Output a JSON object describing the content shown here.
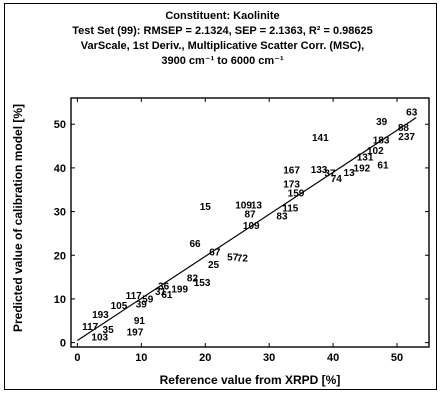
{
  "chart_data": {
    "type": "scatter",
    "title_lines": [
      "Constituent: Kaolinite",
      "Test Set (99): RMSEP = 2.1324, SEP = 2.1363, R² = 0.98625",
      "VarScale, 1st Deriv., Multiplicative Scatter Corr. (MSC),",
      "3900 cm⁻¹ to 6000 cm⁻¹"
    ],
    "xlabel": "Reference value from XRPD [%]",
    "ylabel": "Predicted value of calibration model [%]",
    "xlim": [
      -1,
      55
    ],
    "ylim": [
      -1,
      56
    ],
    "xticks": [
      0,
      10,
      20,
      30,
      40,
      50
    ],
    "yticks": [
      0,
      10,
      20,
      30,
      40,
      50
    ],
    "grid": false,
    "marker": "sample-number-text",
    "fit_line": {
      "x": [
        0,
        53
      ],
      "y": [
        0.5,
        51.5
      ]
    },
    "points": [
      {
        "label": "63",
        "x": 52.3,
        "y": 52.8
      },
      {
        "label": "39",
        "x": 47.6,
        "y": 50.6
      },
      {
        "label": "141",
        "x": 38.0,
        "y": 47.0
      },
      {
        "label": "88",
        "x": 51.0,
        "y": 49.3
      },
      {
        "label": "237",
        "x": 51.5,
        "y": 47.2
      },
      {
        "label": "183",
        "x": 47.5,
        "y": 46.4
      },
      {
        "label": "102",
        "x": 46.6,
        "y": 44.0
      },
      {
        "label": "131",
        "x": 45.0,
        "y": 42.5
      },
      {
        "label": "61",
        "x": 47.8,
        "y": 40.7
      },
      {
        "label": "192",
        "x": 44.5,
        "y": 40.0
      },
      {
        "label": "13",
        "x": 42.5,
        "y": 39.0
      },
      {
        "label": "167",
        "x": 33.5,
        "y": 39.5
      },
      {
        "label": "133",
        "x": 37.8,
        "y": 39.6
      },
      {
        "label": "37",
        "x": 39.5,
        "y": 38.8
      },
      {
        "label": "74",
        "x": 40.5,
        "y": 37.6
      },
      {
        "label": "173",
        "x": 33.5,
        "y": 36.3
      },
      {
        "label": "159",
        "x": 34.2,
        "y": 34.2
      },
      {
        "label": "115",
        "x": 33.3,
        "y": 30.8
      },
      {
        "label": "83",
        "x": 32.0,
        "y": 29.0
      },
      {
        "label": "15",
        "x": 20.0,
        "y": 31.2
      },
      {
        "label": "109",
        "x": 26.0,
        "y": 31.5
      },
      {
        "label": "13",
        "x": 28.0,
        "y": 31.5
      },
      {
        "label": "87",
        "x": 27.0,
        "y": 29.5
      },
      {
        "label": "109",
        "x": 27.2,
        "y": 26.8
      },
      {
        "label": "66",
        "x": 18.4,
        "y": 22.7
      },
      {
        "label": "67",
        "x": 21.5,
        "y": 20.8
      },
      {
        "label": "57",
        "x": 24.3,
        "y": 19.6
      },
      {
        "label": "72",
        "x": 25.8,
        "y": 19.4
      },
      {
        "label": "25",
        "x": 21.3,
        "y": 17.9
      },
      {
        "label": "82",
        "x": 18.0,
        "y": 14.8
      },
      {
        "label": "153",
        "x": 19.5,
        "y": 13.8
      },
      {
        "label": "36",
        "x": 13.5,
        "y": 13.0
      },
      {
        "label": "199",
        "x": 16.0,
        "y": 12.3
      },
      {
        "label": "31",
        "x": 13.0,
        "y": 11.7
      },
      {
        "label": "61",
        "x": 14.0,
        "y": 11.0
      },
      {
        "label": "117",
        "x": 8.8,
        "y": 10.8
      },
      {
        "label": "59",
        "x": 11.0,
        "y": 10.0
      },
      {
        "label": "105",
        "x": 6.5,
        "y": 8.5
      },
      {
        "label": "39",
        "x": 10.0,
        "y": 8.8
      },
      {
        "label": "91",
        "x": 9.7,
        "y": 5.1
      },
      {
        "label": "193",
        "x": 3.6,
        "y": 6.4
      },
      {
        "label": "117",
        "x": 2.0,
        "y": 3.7
      },
      {
        "label": "197",
        "x": 9.0,
        "y": 2.4
      },
      {
        "label": "103",
        "x": 3.5,
        "y": 1.3
      },
      {
        "label": "35",
        "x": 4.8,
        "y": 3.0
      }
    ]
  }
}
